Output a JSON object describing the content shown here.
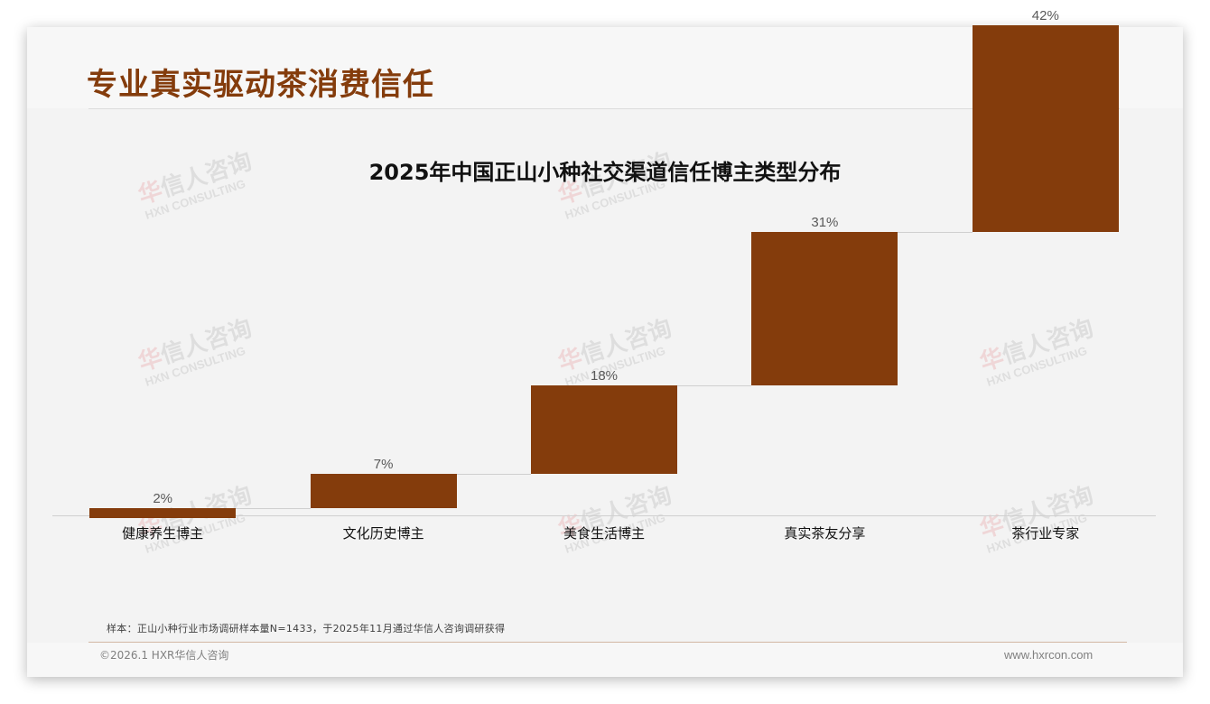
{
  "header": {
    "title": "专业真实驱动茶消费信任",
    "logo": {
      "cn_accent": "华",
      "cn_rest": "信人咨询",
      "en_accent": "H",
      "en_rest": "XN CONSULTING"
    }
  },
  "watermark": {
    "cn_accent": "华",
    "cn_rest": "信人咨询",
    "en": "HXN CONSULTING"
  },
  "chart_data": {
    "type": "bar",
    "subtype": "waterfall",
    "title": "2025年中国正山小种社交渠道信任博主类型分布",
    "categories": [
      "健康养生博主",
      "文化历史博主",
      "美食生活博主",
      "真实茶友分享",
      "茶行业专家"
    ],
    "values": [
      2,
      7,
      18,
      31,
      42
    ],
    "value_labels": [
      "2%",
      "7%",
      "18%",
      "31%",
      "42%"
    ],
    "unit": "%",
    "xlabel": "",
    "ylabel": "",
    "ylim": [
      0,
      100
    ],
    "grid": false,
    "legend": "none",
    "bar_color": "#843c0c"
  },
  "footer": {
    "note": "样本：正山小种行业市场调研样本量N=1433，于2025年11月通过华信人咨询调研获得",
    "copyright": "©2026.1 HXR华信人咨询",
    "website": "www.hxrcon.com"
  }
}
